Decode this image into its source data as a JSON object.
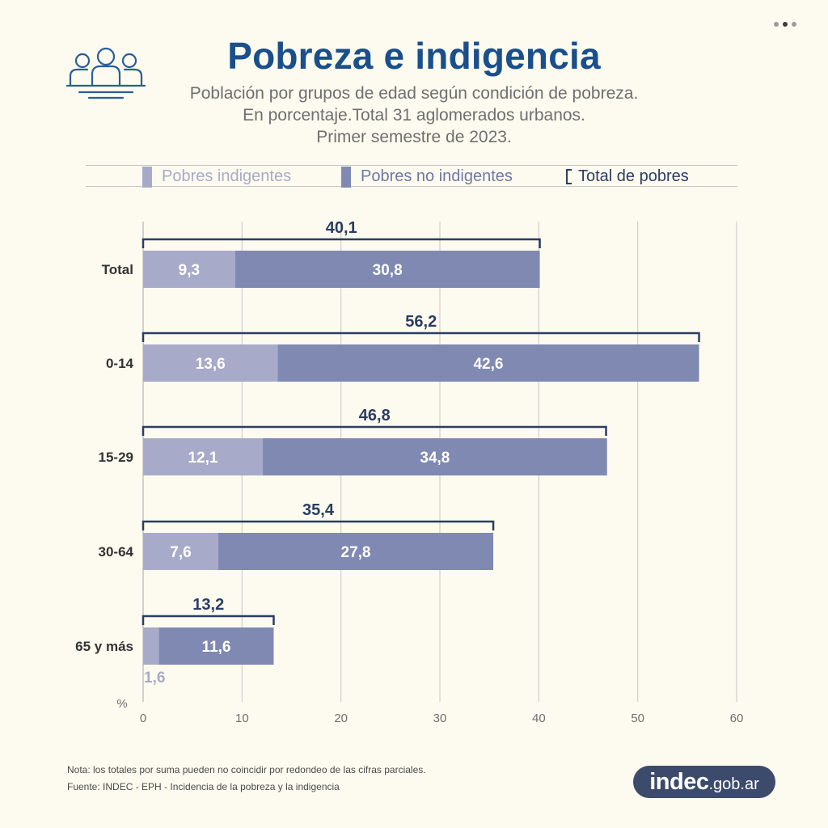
{
  "header": {
    "title": "Pobreza e indigencia",
    "subtitle_lines": [
      "Población por grupos de edad según condición de pobreza.",
      "En porcentaje.Total 31 aglomerados urbanos.",
      "Primer semestre de 2023."
    ],
    "icon": "people-group-icon"
  },
  "legend": {
    "indigentes": "Pobres indigentes",
    "no_indigentes": "Pobres no indigentes",
    "total": "Total de pobres"
  },
  "colors": {
    "indigentes": "#a7abc9",
    "no_indigentes": "#8089b2",
    "total_bracket": "#2a3d63",
    "title": "#1a4f8c",
    "background": "#fdfbef"
  },
  "chart_data": {
    "type": "bar",
    "orientation": "horizontal",
    "stacked": true,
    "categories": [
      "Total",
      "0-14",
      "15-29",
      "30-64",
      "65 y más"
    ],
    "series": [
      {
        "name": "Pobres indigentes",
        "values": [
          9.3,
          13.6,
          12.1,
          7.6,
          1.6
        ],
        "labels": [
          "9,3",
          "13,6",
          "12,1",
          "7,6",
          "1,6"
        ]
      },
      {
        "name": "Pobres no indigentes",
        "values": [
          30.8,
          42.6,
          34.8,
          27.8,
          11.6
        ],
        "labels": [
          "30,8",
          "42,6",
          "34,8",
          "27,8",
          "11,6"
        ]
      }
    ],
    "totals": {
      "name": "Total de pobres",
      "values": [
        40.1,
        56.2,
        46.8,
        35.4,
        13.2
      ],
      "labels": [
        "40,1",
        "56,2",
        "46,8",
        "35,4",
        "13,2"
      ]
    },
    "xlabel": "%",
    "xlim": [
      0,
      60
    ],
    "xticks": [
      0,
      10,
      20,
      30,
      40,
      50,
      60
    ],
    "grid": "vertical",
    "legend_position": "top"
  },
  "footer": {
    "note": "Nota: los totales por suma pueden no coincidir por redondeo de las cifras parciales.",
    "source": "Fuente: INDEC - EPH - Incidencia de la pobreza y la indigencia",
    "logo_main": "indec",
    "logo_sub": ".gob.ar"
  },
  "pager": {
    "count": 3,
    "active": 1
  }
}
